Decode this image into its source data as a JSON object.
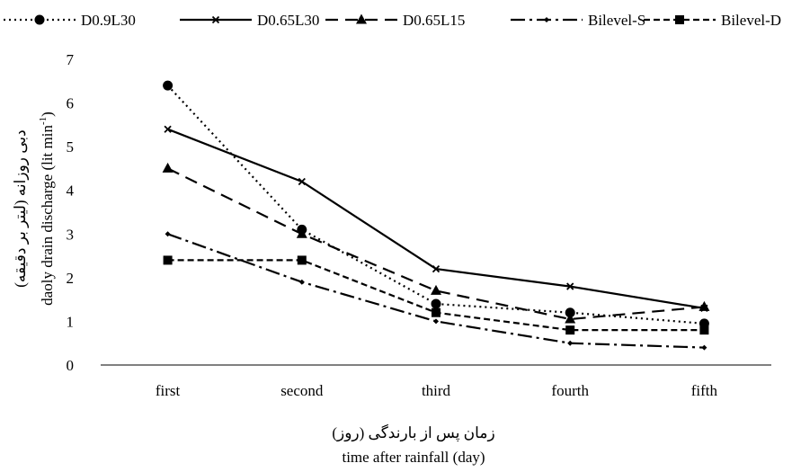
{
  "chart_data": {
    "type": "line",
    "categories": [
      "first",
      "second",
      "third",
      "fourth",
      "fifth"
    ],
    "series": [
      {
        "name": "D0.9L30",
        "values": [
          6.4,
          3.1,
          1.4,
          1.2,
          0.95
        ],
        "dash": "2,4",
        "marker": "circle",
        "color": "#000000"
      },
      {
        "name": "D0.65L30",
        "values": [
          5.4,
          4.2,
          2.2,
          1.8,
          1.3
        ],
        "dash": "",
        "marker": "x",
        "color": "#000000"
      },
      {
        "name": "D0.65L15",
        "values": [
          4.5,
          3.0,
          1.7,
          1.05,
          1.33
        ],
        "dash": "14,8",
        "marker": "triangle",
        "color": "#000000"
      },
      {
        "name": "Bilevel-S",
        "values": [
          3.0,
          1.9,
          1.0,
          0.5,
          0.4
        ],
        "dash": "16,5,3,5",
        "marker": "diamond",
        "color": "#000000"
      },
      {
        "name": "Bilevel-D",
        "values": [
          2.4,
          2.4,
          1.2,
          0.8,
          0.8
        ],
        "dash": "7,4",
        "marker": "square",
        "color": "#000000"
      }
    ],
    "ylabel_fa": "دبی روزانه (لیتر بر دقیقه)",
    "ylabel_en": "daoly drain discharge (lit min",
    "ylabel_en_sup": "-1",
    "ylabel_en_end": ")",
    "xlabel_fa": "زمان پس از بارندگی (روز)",
    "xlabel_en": "time after rainfall  (day)",
    "ylim": [
      0,
      7
    ],
    "yticks": [
      "0",
      "1",
      "2",
      "3",
      "4",
      "5",
      "6",
      "7"
    ],
    "grid": false,
    "legend_position": "top"
  }
}
